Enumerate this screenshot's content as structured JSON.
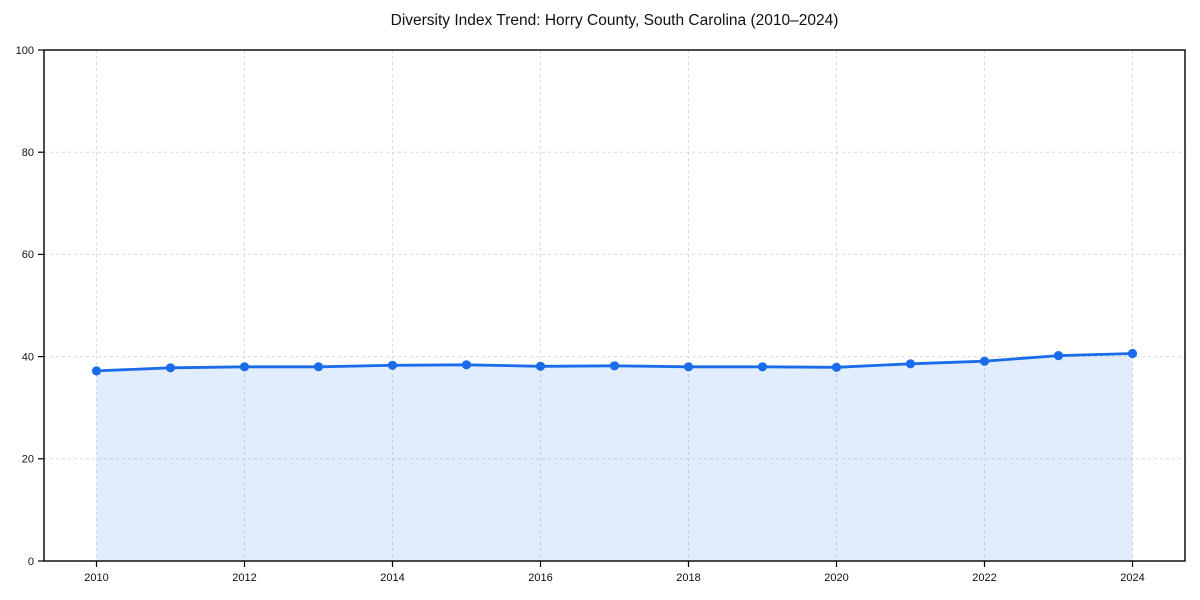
{
  "chart_data": {
    "type": "line",
    "title": "Diversity Index Trend: Horry County, South Carolina (2010–2024)",
    "x": [
      2010,
      2011,
      2012,
      2013,
      2014,
      2015,
      2016,
      2017,
      2018,
      2019,
      2020,
      2021,
      2022,
      2023,
      2024
    ],
    "series": [
      {
        "name": "Diversity Index",
        "values": [
          37.2,
          37.8,
          38.0,
          38.0,
          38.3,
          38.4,
          38.1,
          38.2,
          38.0,
          38.0,
          37.9,
          38.6,
          39.1,
          40.2,
          40.6
        ]
      }
    ],
    "xlabel": "",
    "ylabel": "",
    "xticks": [
      2010,
      2012,
      2014,
      2016,
      2018,
      2020,
      2022,
      2024
    ],
    "yticks": [
      0,
      20,
      40,
      60,
      80,
      100
    ],
    "ylim": [
      0,
      100
    ],
    "grid": true,
    "grid_style": "dashed",
    "legend_position": "none",
    "area_fill": true,
    "markers": true,
    "colors": {
      "line": "#1a6ce8",
      "marker": "#1a6ce8",
      "fill": "#1a6ce8",
      "fill_opacity": "0.13",
      "grid": "#d9d9d9",
      "spine": "#000000",
      "tick_label": "#111111",
      "title": "#111111",
      "background": "#ffffff"
    }
  }
}
